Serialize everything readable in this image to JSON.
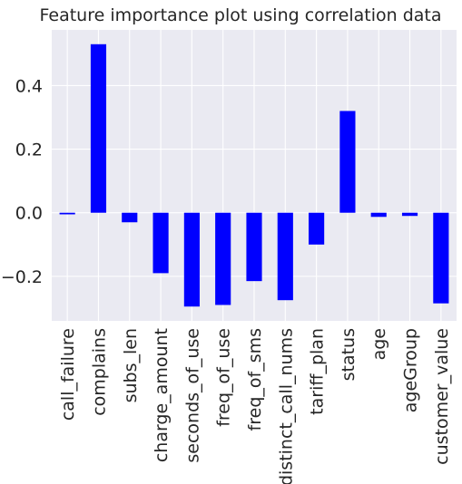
{
  "chart_data": {
    "type": "bar",
    "title": "Feature importance plot using correlation data",
    "xlabel": "",
    "ylabel": "",
    "categories": [
      "call_failure",
      "complains",
      "subs_len",
      "charge_amount",
      "seconds_of_use",
      "freq_of_use",
      "freq_of_sms",
      "distinct_call_nums",
      "tariff_plan",
      "status",
      "age",
      "ageGroup",
      "customer_value"
    ],
    "values": [
      -0.005,
      0.53,
      -0.03,
      -0.19,
      -0.295,
      -0.29,
      -0.215,
      -0.275,
      -0.1,
      0.32,
      -0.013,
      -0.01,
      -0.285
    ],
    "ylim": [
      -0.34,
      0.575
    ],
    "yticks": [
      -0.2,
      0.0,
      0.2,
      0.4
    ],
    "ytick_labels": [
      "−0.2",
      "0.0",
      "0.2",
      "0.4"
    ],
    "grid": true,
    "background_color": "#eaeaf2",
    "bar_color": "#0000ff"
  }
}
